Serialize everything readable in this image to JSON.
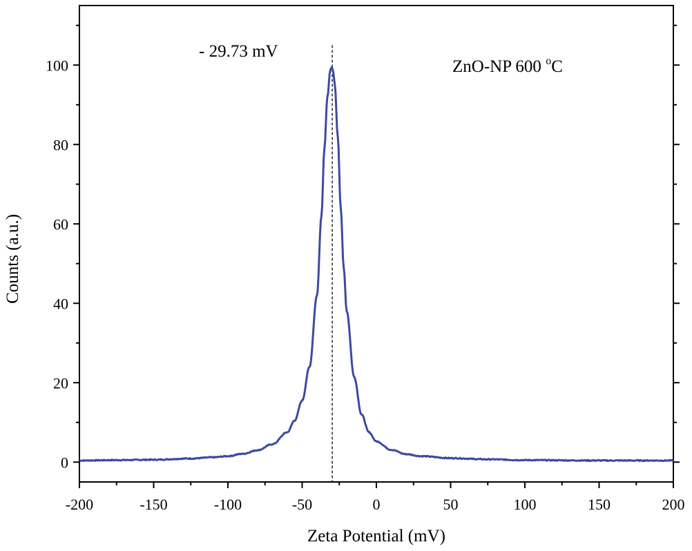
{
  "chart_data": {
    "type": "line",
    "title": "",
    "xlabel": "Zeta Potential (mV)",
    "ylabel": "Counts (a.u.)",
    "xlim": [
      -200,
      200
    ],
    "ylim": [
      -5,
      115
    ],
    "x_ticks": [
      -200,
      -150,
      -100,
      -50,
      0,
      50,
      100,
      150,
      200
    ],
    "x_tick_labels": [
      "-200",
      "-150",
      "-100",
      "-50",
      "0",
      "50",
      "100",
      "150",
      "200"
    ],
    "y_ticks": [
      0,
      20,
      40,
      60,
      80,
      100
    ],
    "y_tick_labels": [
      "0",
      "20",
      "40",
      "60",
      "80",
      "100"
    ],
    "grid": false,
    "series": [
      {
        "name": "ZnO-NP 600 °C",
        "color": "#3a4aa0",
        "peak_x": -29.73,
        "peak_y": 99.5,
        "x": [
          -200,
          -175,
          -150,
          -125,
          -110,
          -100,
          -90,
          -80,
          -70,
          -60,
          -55,
          -50,
          -45,
          -40,
          -37,
          -35,
          -33,
          -31,
          -30,
          -29,
          -28,
          -26,
          -24,
          -22,
          -20,
          -15,
          -10,
          -5,
          0,
          10,
          20,
          30,
          50,
          75,
          100,
          150,
          200
        ],
        "values": [
          0.4,
          0.5,
          0.6,
          0.9,
          1.2,
          1.5,
          2.1,
          3.0,
          4.5,
          7.5,
          10.5,
          15.5,
          24.0,
          42.0,
          62.0,
          79.0,
          92.0,
          98.8,
          99.5,
          98.2,
          95.0,
          82.0,
          64.0,
          49.0,
          38.0,
          21.5,
          12.0,
          7.5,
          5.2,
          3.1,
          2.0,
          1.5,
          1.0,
          0.7,
          0.5,
          0.4,
          0.4
        ]
      }
    ],
    "annotations": [
      {
        "text": "- 29.73 mV",
        "x": -29.73,
        "style": "dashed vertical line at peak"
      },
      {
        "text_main": "ZnO-NP 600 ",
        "text_sup": "o",
        "text_unit": "C",
        "position": "top-right"
      }
    ]
  }
}
